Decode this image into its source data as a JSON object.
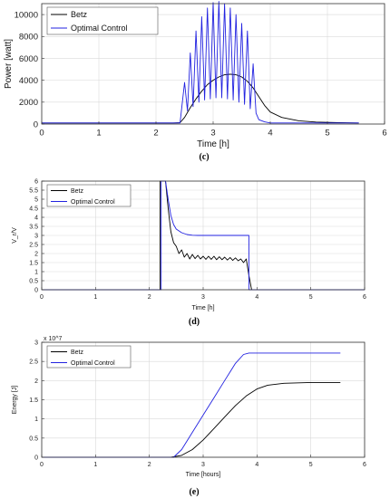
{
  "colors": {
    "betz": "#000000",
    "optimal": "#2222e0",
    "grid": "#d9d9d9",
    "axis": "#333333"
  },
  "chart_data": [
    {
      "type": "line",
      "caption": "(c)",
      "xlabel": "Time [h]",
      "ylabel": "Power [watt]",
      "xlim": [
        0,
        6
      ],
      "ylim": [
        0,
        11000
      ],
      "xticks": [
        "0",
        "1",
        "2",
        "3",
        "4",
        "5",
        "6"
      ],
      "yticks": [
        "0",
        "2000",
        "4000",
        "6000",
        "8000",
        "10000"
      ],
      "grid": true,
      "legend": "top-left",
      "series": [
        {
          "name": "Betz",
          "color": "#000000",
          "x": [
            0,
            2.3,
            2.42,
            2.5,
            2.6,
            2.7,
            2.8,
            2.9,
            3.0,
            3.1,
            3.2,
            3.3,
            3.4,
            3.5,
            3.6,
            3.7,
            3.8,
            3.9,
            4.0,
            4.2,
            4.5,
            4.8,
            5.2,
            5.55
          ],
          "y": [
            100,
            100,
            120,
            600,
            1500,
            2300,
            3000,
            3600,
            4000,
            4300,
            4500,
            4550,
            4500,
            4300,
            3900,
            3300,
            2500,
            1700,
            1100,
            600,
            300,
            180,
            130,
            100
          ]
        },
        {
          "name": "Optimal Control",
          "color": "#2222e0",
          "x": [
            0,
            2.42,
            2.5,
            2.55,
            2.6,
            2.65,
            2.7,
            2.75,
            2.8,
            2.85,
            2.9,
            2.95,
            3.0,
            3.05,
            3.1,
            3.15,
            3.2,
            3.25,
            3.3,
            3.35,
            3.4,
            3.45,
            3.5,
            3.55,
            3.6,
            3.65,
            3.7,
            3.75,
            3.8,
            3.9,
            4.0,
            5.55
          ],
          "y": [
            100,
            100,
            3800,
            1200,
            6500,
            1600,
            8500,
            2000,
            9800,
            2200,
            10600,
            2300,
            11100,
            2400,
            11200,
            2400,
            11000,
            2300,
            10600,
            2200,
            10000,
            2000,
            9200,
            1800,
            8500,
            1400,
            5500,
            1000,
            400,
            200,
            100,
            100
          ]
        }
      ]
    },
    {
      "type": "line",
      "caption": "(d)",
      "xlabel": "Time [h]",
      "ylabel": "V_r/V",
      "xlim": [
        0,
        6
      ],
      "ylim": [
        0,
        6
      ],
      "xticks": [
        "0",
        "1",
        "2",
        "3",
        "4",
        "5",
        "6"
      ],
      "yticks": [
        "0",
        "0.5",
        "1",
        "1.5",
        "2",
        "2.5",
        "3",
        "3.5",
        "4",
        "4.5",
        "5",
        "5.5",
        "6"
      ],
      "grid": true,
      "legend": "top-left",
      "series": [
        {
          "name": "Betz",
          "color": "#000000",
          "x": [
            0,
            2.2,
            2.2,
            2.3,
            2.35,
            2.4,
            2.45,
            2.5,
            2.55,
            2.6,
            2.65,
            2.7,
            2.75,
            2.8,
            2.85,
            2.9,
            2.95,
            3.0,
            3.05,
            3.1,
            3.15,
            3.2,
            3.25,
            3.3,
            3.35,
            3.4,
            3.45,
            3.5,
            3.55,
            3.6,
            3.65,
            3.7,
            3.75,
            3.8,
            3.85,
            3.9,
            6.0
          ],
          "y": [
            0,
            0,
            6,
            6,
            4.5,
            3.2,
            2.6,
            2.4,
            2.0,
            2.2,
            1.8,
            2.0,
            1.7,
            1.95,
            1.72,
            1.9,
            1.7,
            1.85,
            1.68,
            1.85,
            1.68,
            1.85,
            1.66,
            1.82,
            1.66,
            1.8,
            1.64,
            1.78,
            1.62,
            1.76,
            1.6,
            1.7,
            1.5,
            1.7,
            0.8,
            0,
            0
          ]
        },
        {
          "name": "Optimal Control",
          "color": "#2222e0",
          "x": [
            0,
            2.22,
            2.22,
            2.3,
            2.35,
            2.4,
            2.45,
            2.5,
            2.6,
            2.7,
            2.8,
            2.9,
            3.0,
            3.5,
            3.85,
            3.85,
            4.0,
            6.0
          ],
          "y": [
            0,
            0,
            6,
            6,
            5.0,
            4.1,
            3.6,
            3.35,
            3.15,
            3.05,
            3.01,
            3.0,
            3.0,
            3.0,
            3.0,
            0,
            0,
            0
          ]
        }
      ]
    },
    {
      "type": "line",
      "caption": "(e)",
      "xlabel": "Time [hours]",
      "ylabel": "Energy [J]",
      "exponent": "x 10^7",
      "xlim": [
        0,
        6
      ],
      "ylim": [
        0,
        3
      ],
      "xticks": [
        "0",
        "1",
        "2",
        "3",
        "4",
        "5",
        "6"
      ],
      "yticks": [
        "0",
        "0.5",
        "1",
        "1.5",
        "2",
        "2.5",
        "3"
      ],
      "grid": true,
      "legend": "top-left",
      "series": [
        {
          "name": "Betz",
          "color": "#000000",
          "x": [
            0,
            2.4,
            2.6,
            2.8,
            3.0,
            3.2,
            3.4,
            3.6,
            3.8,
            4.0,
            4.2,
            4.5,
            5.0,
            5.55
          ],
          "y": [
            0,
            0,
            0.05,
            0.2,
            0.45,
            0.75,
            1.05,
            1.35,
            1.6,
            1.78,
            1.88,
            1.93,
            1.95,
            1.95
          ]
        },
        {
          "name": "Optimal Control",
          "color": "#2222e0",
          "x": [
            0,
            2.45,
            2.6,
            2.8,
            3.0,
            3.2,
            3.4,
            3.6,
            3.75,
            3.85,
            4.0,
            5.55
          ],
          "y": [
            0,
            0,
            0.2,
            0.65,
            1.1,
            1.55,
            2.0,
            2.45,
            2.68,
            2.72,
            2.72,
            2.72
          ]
        }
      ]
    }
  ]
}
